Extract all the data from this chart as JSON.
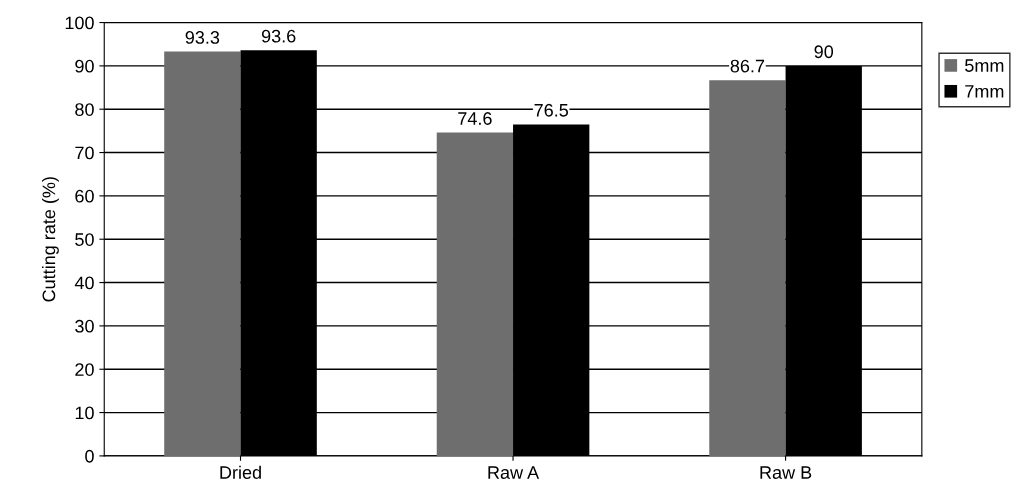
{
  "chart_data": {
    "type": "bar",
    "ylabel": "Cutting rate (%)",
    "categories": [
      "Dried",
      "Raw A",
      "Raw B"
    ],
    "series": [
      {
        "name": "5mm",
        "color": "#6e6e6e",
        "values": [
          93.3,
          74.6,
          86.7
        ]
      },
      {
        "name": "7mm",
        "color": "#000000",
        "values": [
          93.6,
          76.5,
          90
        ]
      }
    ],
    "ylim": [
      0,
      100
    ],
    "yticks": [
      0,
      10,
      20,
      30,
      40,
      50,
      60,
      70,
      80,
      90,
      100
    ],
    "grid": "y",
    "legend": "top right",
    "data_labels": true
  }
}
